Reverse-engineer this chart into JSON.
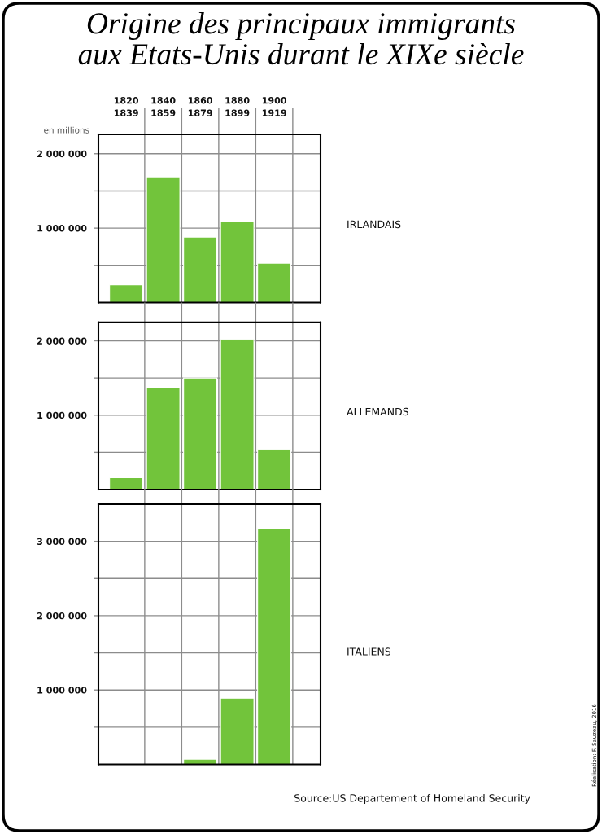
{
  "chart_data": [
    {
      "type": "bar",
      "title": "Origine des principaux immigrants\naux Etats-Unis durant le XIXe siècle",
      "ylabel": "en millions",
      "categories": [
        "1820\n1839",
        "1840\n1859",
        "1860\n1879",
        "1880\n1899",
        "1900\n1919"
      ],
      "series": [
        {
          "name": "IRLANDAIS",
          "color": "#72c43b",
          "values": [
            240000,
            1690000,
            880000,
            1090000,
            530000
          ]
        }
      ],
      "ylim": [
        0,
        2260000
      ],
      "yticks": [
        {
          "value": 500000,
          "label": null
        },
        {
          "value": 1000000,
          "label": "1 000 000"
        },
        {
          "value": 1500000,
          "label": null
        },
        {
          "value": 2000000,
          "label": "2 000 000"
        }
      ],
      "grid": true
    },
    {
      "type": "bar",
      "categories": [
        null,
        null,
        null,
        null,
        null
      ],
      "series": [
        {
          "name": "ALLEMANDS",
          "color": "#72c43b",
          "values": [
            160000,
            1370000,
            1500000,
            2020000,
            540000
          ]
        }
      ],
      "ylim": [
        0,
        2250000
      ],
      "yticks": [
        {
          "value": 500000,
          "label": null
        },
        {
          "value": 1000000,
          "label": "1 000 000"
        },
        {
          "value": 1500000,
          "label": null
        },
        {
          "value": 2000000,
          "label": "2 000 000"
        }
      ],
      "grid": true,
      "tick_labels": "y"
    },
    {
      "type": "bar",
      "categories": [
        null,
        null,
        null,
        null,
        null
      ],
      "series": [
        {
          "name": "ITALIENS",
          "color": "#72c43b",
          "values": [
            null,
            null,
            70000,
            890000,
            3170000
          ]
        }
      ],
      "ylim": [
        0,
        3500000
      ],
      "yticks": [
        {
          "value": 500000,
          "label": null
        },
        {
          "value": 1000000,
          "label": "1 000 000"
        },
        {
          "value": 1500000,
          "label": null
        },
        {
          "value": 2000000,
          "label": "2 000 000"
        },
        {
          "value": 2500000,
          "label": null
        },
        {
          "value": 3000000,
          "label": "3 000 000"
        }
      ],
      "grid": true,
      "tick_labels": "y",
      "annotations": [
        "Source:US Departement of Homeland Security",
        "Réalisation: F. Sauzeau, 2016"
      ]
    }
  ]
}
